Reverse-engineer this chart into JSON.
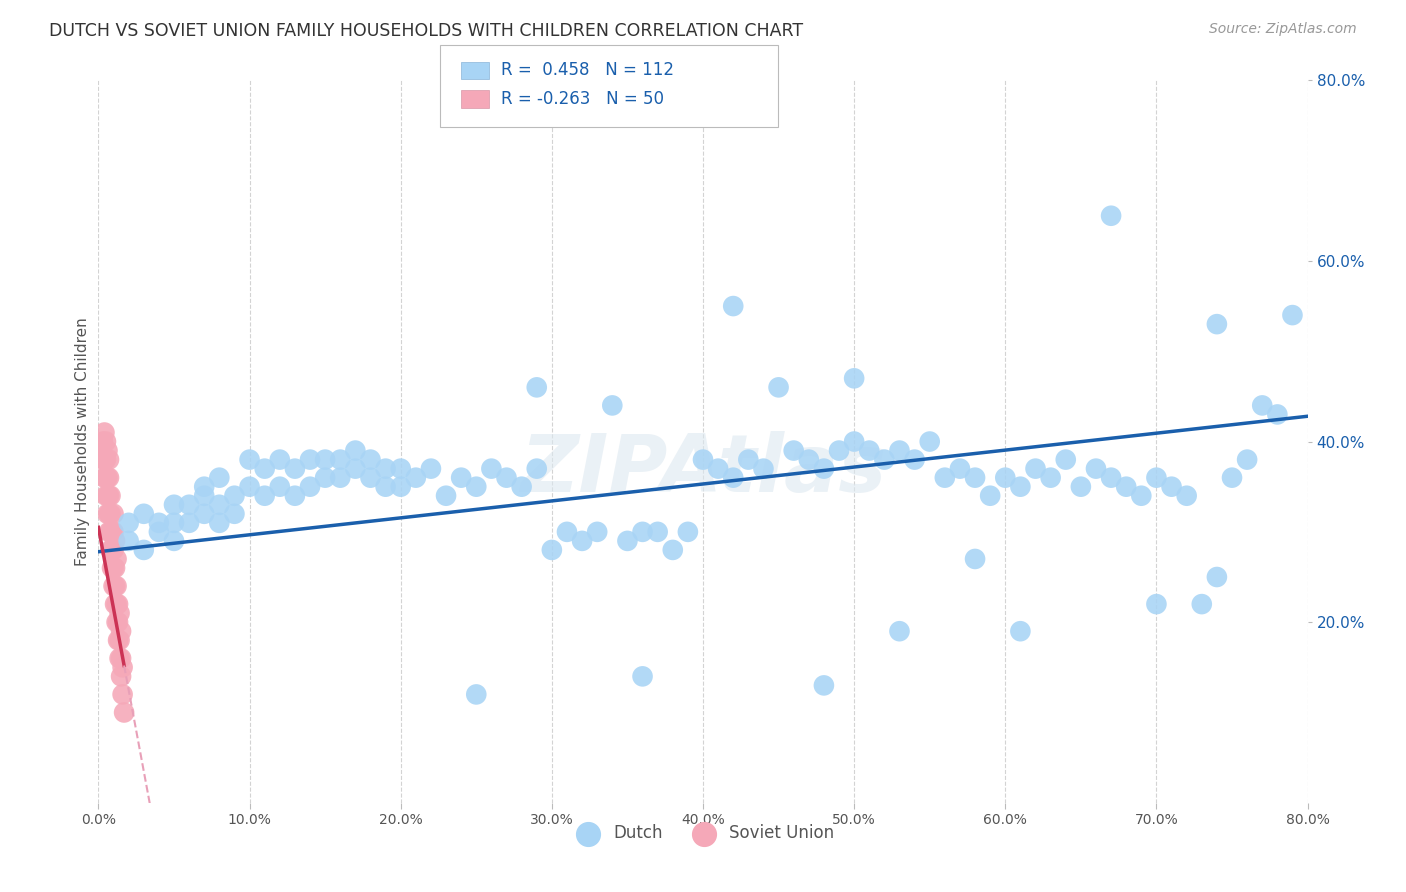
{
  "title": "DUTCH VS SOVIET UNION FAMILY HOUSEHOLDS WITH CHILDREN CORRELATION CHART",
  "source": "Source: ZipAtlas.com",
  "ylabel": "Family Households with Children",
  "watermark": "ZIPAtlas",
  "blue_R": 0.458,
  "blue_N": 112,
  "pink_R": -0.263,
  "pink_N": 50,
  "xlim": [
    0,
    0.8
  ],
  "ylim": [
    0,
    0.8
  ],
  "xtick_labels": [
    "0.0%",
    "10.0%",
    "20.0%",
    "30.0%",
    "40.0%",
    "50.0%",
    "60.0%",
    "70.0%",
    "80.0%"
  ],
  "xtick_values": [
    0.0,
    0.1,
    0.2,
    0.3,
    0.4,
    0.5,
    0.6,
    0.7,
    0.8
  ],
  "ytick_labels": [
    "20.0%",
    "40.0%",
    "60.0%",
    "80.0%"
  ],
  "ytick_values": [
    0.2,
    0.4,
    0.6,
    0.8
  ],
  "blue_color": "#a8d4f5",
  "blue_line_color": "#1a5fac",
  "pink_color": "#f5a8b8",
  "pink_line_color": "#cc3355",
  "pink_line_dashed_color": "#e8a0b8",
  "grid_color": "#c8c8c8",
  "background_color": "#ffffff",
  "title_color": "#333333",
  "legend_R_color": "#1a5fac",
  "blue_line_y0": 0.278,
  "blue_line_y1": 0.428,
  "pink_line_y0": 0.305,
  "pink_line_slope": -9.0,
  "dutch_x": [
    0.02,
    0.02,
    0.03,
    0.03,
    0.04,
    0.04,
    0.05,
    0.05,
    0.05,
    0.06,
    0.06,
    0.07,
    0.07,
    0.07,
    0.08,
    0.08,
    0.08,
    0.09,
    0.09,
    0.1,
    0.1,
    0.11,
    0.11,
    0.12,
    0.12,
    0.13,
    0.13,
    0.14,
    0.14,
    0.15,
    0.15,
    0.16,
    0.16,
    0.17,
    0.17,
    0.18,
    0.18,
    0.19,
    0.19,
    0.2,
    0.2,
    0.21,
    0.22,
    0.23,
    0.24,
    0.25,
    0.26,
    0.27,
    0.28,
    0.29,
    0.3,
    0.31,
    0.32,
    0.33,
    0.35,
    0.36,
    0.38,
    0.39,
    0.4,
    0.41,
    0.42,
    0.43,
    0.44,
    0.46,
    0.47,
    0.48,
    0.49,
    0.5,
    0.51,
    0.52,
    0.53,
    0.54,
    0.55,
    0.56,
    0.57,
    0.58,
    0.59,
    0.6,
    0.61,
    0.62,
    0.63,
    0.64,
    0.65,
    0.66,
    0.67,
    0.68,
    0.69,
    0.7,
    0.71,
    0.72,
    0.73,
    0.74,
    0.75,
    0.76,
    0.77,
    0.78,
    0.37,
    0.45,
    0.5,
    0.34,
    0.29,
    0.53,
    0.61,
    0.7,
    0.58,
    0.42,
    0.48,
    0.36,
    0.25,
    0.67,
    0.74,
    0.79
  ],
  "dutch_y": [
    0.29,
    0.31,
    0.28,
    0.32,
    0.3,
    0.31,
    0.29,
    0.33,
    0.31,
    0.31,
    0.33,
    0.35,
    0.32,
    0.34,
    0.31,
    0.33,
    0.36,
    0.32,
    0.34,
    0.35,
    0.38,
    0.34,
    0.37,
    0.35,
    0.38,
    0.34,
    0.37,
    0.35,
    0.38,
    0.36,
    0.38,
    0.36,
    0.38,
    0.37,
    0.39,
    0.36,
    0.38,
    0.35,
    0.37,
    0.35,
    0.37,
    0.36,
    0.37,
    0.34,
    0.36,
    0.35,
    0.37,
    0.36,
    0.35,
    0.37,
    0.28,
    0.3,
    0.29,
    0.3,
    0.29,
    0.3,
    0.28,
    0.3,
    0.38,
    0.37,
    0.36,
    0.38,
    0.37,
    0.39,
    0.38,
    0.37,
    0.39,
    0.4,
    0.39,
    0.38,
    0.39,
    0.38,
    0.4,
    0.36,
    0.37,
    0.36,
    0.34,
    0.36,
    0.35,
    0.37,
    0.36,
    0.38,
    0.35,
    0.37,
    0.36,
    0.35,
    0.34,
    0.36,
    0.35,
    0.34,
    0.22,
    0.25,
    0.36,
    0.38,
    0.44,
    0.43,
    0.3,
    0.46,
    0.47,
    0.44,
    0.46,
    0.19,
    0.19,
    0.22,
    0.27,
    0.55,
    0.13,
    0.14,
    0.12,
    0.65,
    0.53,
    0.54
  ],
  "soviet_x": [
    0.003,
    0.003,
    0.004,
    0.004,
    0.004,
    0.005,
    0.005,
    0.005,
    0.005,
    0.006,
    0.006,
    0.006,
    0.006,
    0.007,
    0.007,
    0.007,
    0.007,
    0.007,
    0.008,
    0.008,
    0.008,
    0.008,
    0.009,
    0.009,
    0.009,
    0.01,
    0.01,
    0.01,
    0.01,
    0.01,
    0.011,
    0.011,
    0.011,
    0.011,
    0.012,
    0.012,
    0.012,
    0.012,
    0.013,
    0.013,
    0.013,
    0.014,
    0.014,
    0.014,
    0.015,
    0.015,
    0.015,
    0.016,
    0.016,
    0.017
  ],
  "soviet_y": [
    0.38,
    0.4,
    0.36,
    0.38,
    0.41,
    0.34,
    0.36,
    0.38,
    0.4,
    0.32,
    0.34,
    0.36,
    0.39,
    0.3,
    0.32,
    0.34,
    0.36,
    0.38,
    0.28,
    0.3,
    0.32,
    0.34,
    0.26,
    0.28,
    0.3,
    0.24,
    0.26,
    0.28,
    0.3,
    0.32,
    0.22,
    0.24,
    0.26,
    0.29,
    0.2,
    0.22,
    0.24,
    0.27,
    0.18,
    0.2,
    0.22,
    0.16,
    0.18,
    0.21,
    0.14,
    0.16,
    0.19,
    0.12,
    0.15,
    0.1
  ]
}
